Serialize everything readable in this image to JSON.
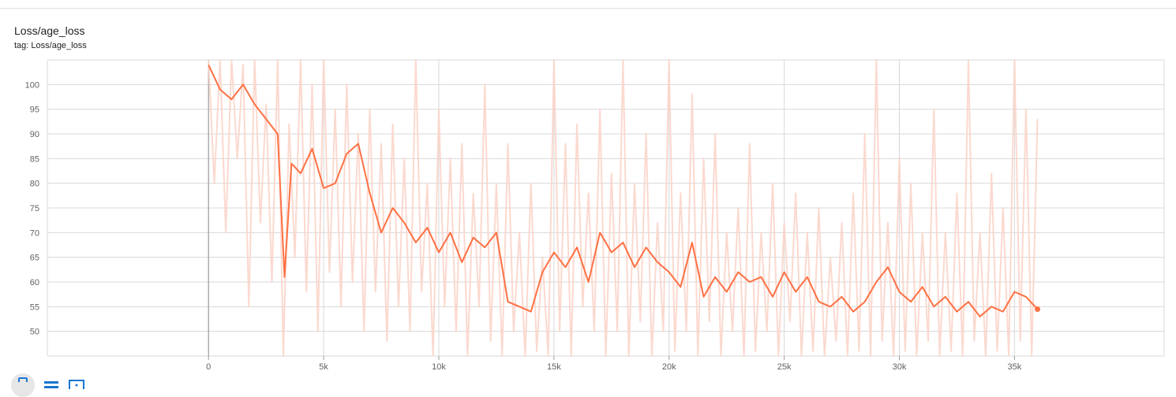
{
  "card": {
    "title": "Loss/age_loss",
    "tag": "tag: Loss/age_loss"
  },
  "toolbar": {
    "buttons": [
      {
        "icon": "fullscreen-icon"
      },
      {
        "icon": "log-scale-lines-icon"
      },
      {
        "icon": "fit-domain-icon"
      }
    ]
  },
  "colors": {
    "smoothed": "#ff7043",
    "raw": "#fbd5ca",
    "grid": "#d8d8d8",
    "axis": "#9e9e9e"
  },
  "chart_data": {
    "type": "line",
    "title": "Loss/age_loss",
    "xlabel": "",
    "ylabel": "",
    "xlim": [
      -7000,
      41500
    ],
    "ylim": [
      45,
      105
    ],
    "x_ticks": [
      0,
      5000,
      10000,
      15000,
      20000,
      25000,
      30000,
      35000
    ],
    "x_tick_labels": [
      "0",
      "5k",
      "10k",
      "15k",
      "20k",
      "25k",
      "30k",
      "35k"
    ],
    "y_ticks": [
      50,
      55,
      60,
      65,
      70,
      75,
      80,
      85,
      90,
      95,
      100
    ],
    "y_tick_labels": [
      "50",
      "55",
      "60",
      "65",
      "70",
      "75",
      "80",
      "85",
      "90",
      "95",
      "100"
    ],
    "grid": true,
    "legend": "none",
    "series": [
      {
        "role": "smoothed",
        "x": [
          0,
          500,
          1000,
          1500,
          2000,
          2500,
          3000,
          3300,
          3600,
          4000,
          4500,
          5000,
          5500,
          6000,
          6500,
          7000,
          7500,
          8000,
          8500,
          9000,
          9500,
          10000,
          10500,
          11000,
          11500,
          12000,
          12500,
          13000,
          13500,
          14000,
          14500,
          15000,
          15500,
          16000,
          16500,
          17000,
          17500,
          18000,
          18500,
          19000,
          19500,
          20000,
          20500,
          21000,
          21500,
          22000,
          22500,
          23000,
          23500,
          24000,
          24500,
          25000,
          25500,
          26000,
          26500,
          27000,
          27500,
          28000,
          28500,
          29000,
          29500,
          30000,
          30500,
          31000,
          31500,
          32000,
          32500,
          33000,
          33500,
          34000,
          34500,
          35000,
          35500,
          36000
        ],
        "y": [
          104,
          99,
          97,
          100,
          96,
          93,
          90,
          61,
          84,
          82,
          87,
          79,
          80,
          86,
          88,
          78,
          70,
          75,
          72,
          68,
          71,
          66,
          70,
          64,
          69,
          67,
          70,
          56,
          55,
          54,
          62,
          66,
          63,
          67,
          60,
          70,
          66,
          68,
          63,
          67,
          64,
          62,
          59,
          68,
          57,
          61,
          58,
          62,
          60,
          61,
          57,
          62,
          58,
          61,
          56,
          55,
          57,
          54,
          56,
          60,
          63,
          58,
          56,
          59,
          55,
          57,
          54,
          56,
          53,
          55,
          54,
          58,
          57,
          54.5
        ]
      },
      {
        "role": "raw",
        "x": [
          0,
          250,
          500,
          750,
          1000,
          1250,
          1500,
          1750,
          2000,
          2250,
          2500,
          2750,
          3000,
          3250,
          3500,
          3750,
          4000,
          4250,
          4500,
          4750,
          5000,
          5250,
          5500,
          5750,
          6000,
          6250,
          6500,
          6750,
          7000,
          7250,
          7500,
          7750,
          8000,
          8250,
          8500,
          8750,
          9000,
          9250,
          9500,
          9750,
          10000,
          10250,
          10500,
          10750,
          11000,
          11250,
          11500,
          11750,
          12000,
          12250,
          12500,
          12750,
          13000,
          13250,
          13500,
          13750,
          14000,
          14250,
          14500,
          14750,
          15000,
          15250,
          15500,
          15750,
          16000,
          16250,
          16500,
          16750,
          17000,
          17250,
          17500,
          17750,
          18000,
          18250,
          18500,
          18750,
          19000,
          19250,
          19500,
          19750,
          20000,
          20250,
          20500,
          20750,
          21000,
          21250,
          21500,
          21750,
          22000,
          22250,
          22500,
          22750,
          23000,
          23250,
          23500,
          23750,
          24000,
          24250,
          24500,
          24750,
          25000,
          25250,
          25500,
          25750,
          26000,
          26250,
          26500,
          26750,
          27000,
          27250,
          27500,
          27750,
          28000,
          28250,
          28500,
          28750,
          29000,
          29250,
          29500,
          29750,
          30000,
          30250,
          30500,
          30750,
          31000,
          31250,
          31500,
          31750,
          32000,
          32250,
          32500,
          32750,
          33000,
          33250,
          33500,
          33750,
          34000,
          34250,
          34500,
          34750,
          35000,
          35250,
          35500,
          35750,
          36000
        ],
        "y": [
          105,
          80,
          105,
          70,
          105,
          85,
          104,
          55,
          105,
          72,
          96,
          60,
          105,
          45,
          92,
          65,
          105,
          58,
          100,
          50,
          105,
          62,
          95,
          55,
          100,
          60,
          90,
          50,
          95,
          58,
          88,
          48,
          92,
          55,
          85,
          50,
          105,
          58,
          80,
          45,
          95,
          55,
          85,
          50,
          88,
          45,
          78,
          55,
          100,
          48,
          80,
          45,
          88,
          50,
          70,
          45,
          80,
          46,
          65,
          45,
          105,
          50,
          88,
          45,
          92,
          55,
          78,
          50,
          95,
          45,
          82,
          50,
          105,
          45,
          80,
          52,
          90,
          45,
          72,
          50,
          105,
          46,
          78,
          50,
          98,
          45,
          85,
          52,
          90,
          45,
          70,
          50,
          75,
          45,
          88,
          46,
          70,
          50,
          80,
          45,
          72,
          52,
          78,
          45,
          70,
          46,
          75,
          45,
          65,
          48,
          72,
          45,
          78,
          46,
          90,
          45,
          105,
          48,
          72,
          45,
          85,
          46,
          80,
          45,
          70,
          48,
          95,
          45,
          70,
          46,
          78,
          45,
          105,
          48,
          70,
          45,
          82,
          46,
          75,
          45,
          105,
          48,
          95,
          45,
          93
        ]
      }
    ]
  }
}
